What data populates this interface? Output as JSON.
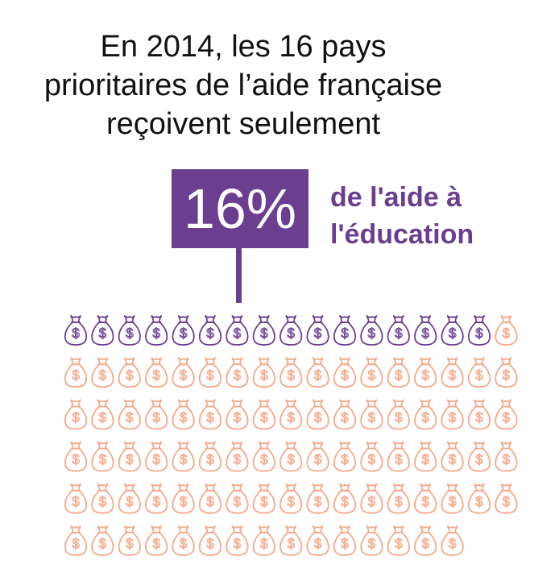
{
  "headline": {
    "line1": "En 2014, les 16 pays",
    "line2": "prioritaires de l’aide française",
    "line3": "reçoivent seulement"
  },
  "highlight": {
    "value": "16%",
    "label_line1": "de l'aide à",
    "label_line2": "l'éducation"
  },
  "colors": {
    "highlight": "#6b3e90",
    "rest": "#f4a98a",
    "text": "#111111"
  },
  "chart_data": {
    "type": "pictogram",
    "icon": "money-bag-icon",
    "total_icons": 100,
    "highlighted_icons": 16,
    "percentage": 16,
    "series": [
      {
        "name": "de l'aide à l'éducation",
        "count": 16,
        "color": "#6b3e90"
      },
      {
        "count": 84,
        "color": "#f4a98a"
      }
    ]
  }
}
